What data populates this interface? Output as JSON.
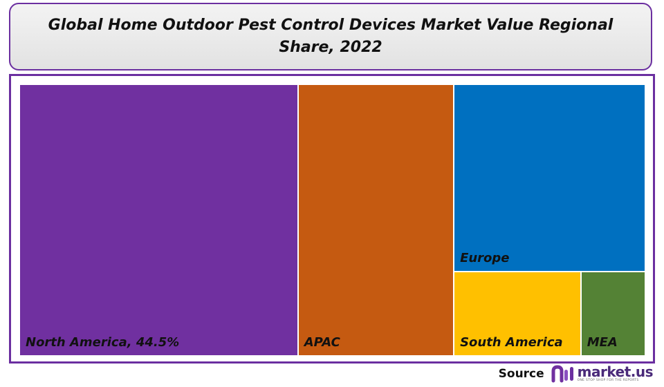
{
  "title": "Global Home Outdoor Pest Control Devices Market Value Regional Share, 2022",
  "chart_data": {
    "type": "treemap",
    "title": "Global Home Outdoor Pest Control Devices Market Value Regional Share, 2022",
    "series": [
      {
        "name": "North America",
        "label": "North America, 44.5%",
        "value": 44.5,
        "color": "#7030a0"
      },
      {
        "name": "APAC",
        "label": "APAC",
        "value": 24.9,
        "color": "#c55a11"
      },
      {
        "name": "Europe",
        "label": "Europe",
        "value": 21.1,
        "color": "#0070c0"
      },
      {
        "name": "South America",
        "label": "South America",
        "value": 6.3,
        "color": "#ffc000"
      },
      {
        "name": "MEA",
        "label": "MEA",
        "value": 3.2,
        "color": "#548235"
      }
    ]
  },
  "source": {
    "label": "Source",
    "brand": "market.us",
    "tagline": "ONE STOP SHOP FOR THE REPORTS",
    "brand_color": "#4a2a7a",
    "logo_icon": "market-us-logo-icon"
  }
}
